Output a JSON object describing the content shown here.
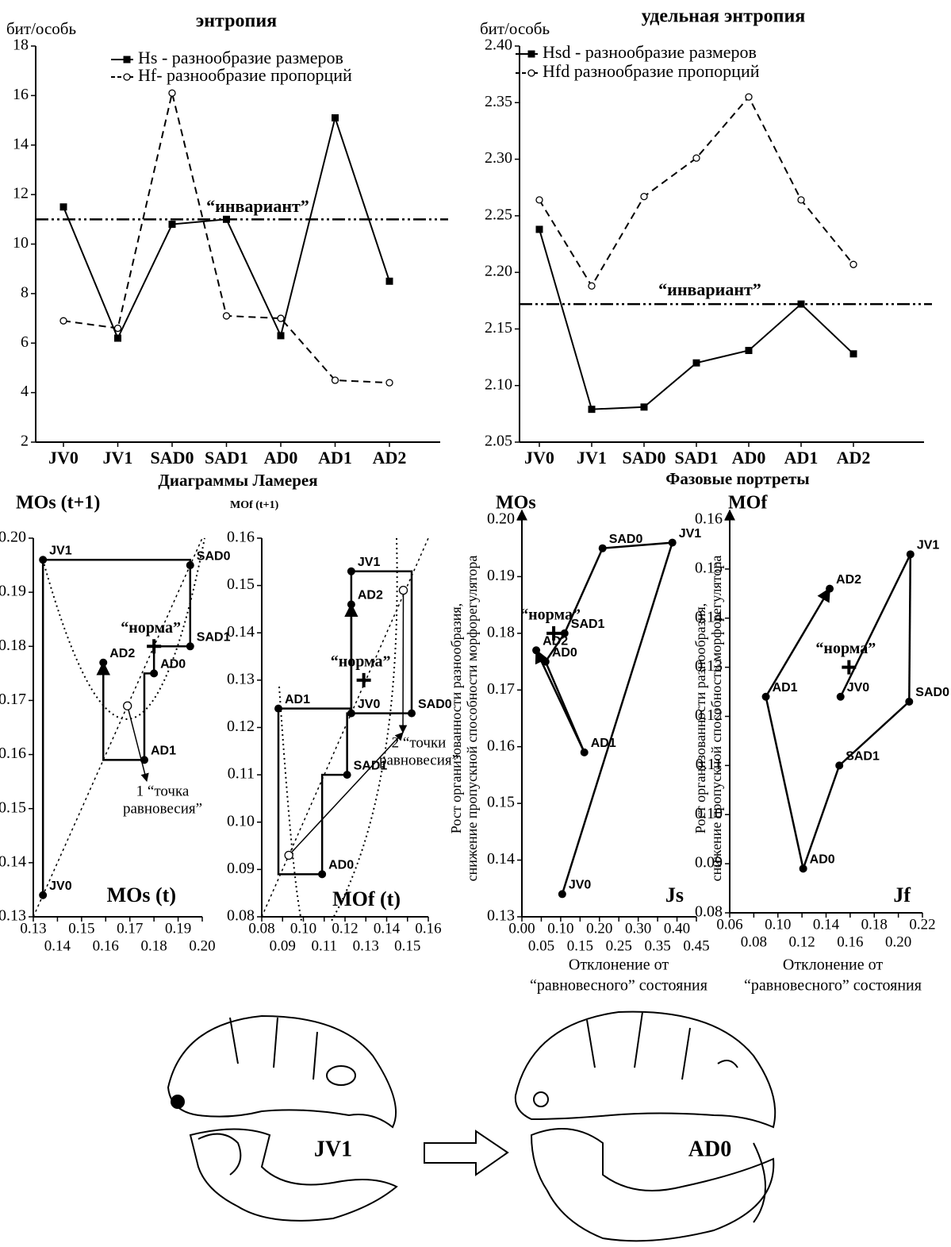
{
  "chart_data": [
    {
      "type": "line",
      "title": "энтропия",
      "ylabel": "бит/особь",
      "categories": [
        "JV0",
        "JV1",
        "SAD0",
        "SAD1",
        "AD0",
        "AD1",
        "AD2"
      ],
      "series": [
        {
          "name": "Hs - разнообразие размеров",
          "color": "#000000",
          "dash": false,
          "marker": "square",
          "values": [
            11.5,
            6.2,
            10.8,
            11.0,
            6.3,
            15.1,
            8.5
          ]
        },
        {
          "name": "Hf- разнообразие пропорций",
          "color": "#000000",
          "dash": true,
          "marker": "circle",
          "values": [
            6.9,
            6.6,
            16.1,
            7.1,
            7.0,
            4.5,
            4.4
          ]
        }
      ],
      "ylim": [
        2,
        18
      ],
      "yticks": [
        2,
        4,
        6,
        8,
        10,
        12,
        14,
        16,
        18
      ],
      "invariant": {
        "label": "“инвариант”",
        "value": 11.0
      }
    },
    {
      "type": "line",
      "title": "удельная энтропия",
      "ylabel": "бит/особь",
      "categories": [
        "JV0",
        "JV1",
        "SAD0",
        "SAD1",
        "AD0",
        "AD1",
        "AD2"
      ],
      "series": [
        {
          "name": "Hsd - разнообразие размеров",
          "color": "#000000",
          "dash": false,
          "marker": "square",
          "values": [
            2.238,
            2.079,
            2.081,
            2.12,
            2.131,
            2.172,
            2.128
          ]
        },
        {
          "name": "Hfd  разнообразие пропорций",
          "color": "#000000",
          "dash": true,
          "marker": "circle",
          "values": [
            2.264,
            2.188,
            2.267,
            2.301,
            2.355,
            2.264,
            2.207
          ]
        }
      ],
      "ylim": [
        2.05,
        2.4
      ],
      "yticks": [
        2.05,
        {
          "value": 2.1,
          "label": "2.10"
        },
        2.15,
        {
          "value": 2.2,
          "label": "2.20"
        },
        2.25,
        {
          "value": 2.3,
          "label": "2.30"
        },
        2.35,
        {
          "value": 2.4,
          "label": "2.40"
        }
      ],
      "invariant": {
        "label": "“инвариант”",
        "value": 2.172
      }
    },
    {
      "type": "lamerey",
      "group_title": "Диаграммы Ламерея",
      "ylabel": "MOs (t+1)",
      "xlabel": "MOs (t)",
      "point_labels": [
        "JV0",
        "JV1",
        "SAD0",
        "SAD1",
        "AD0",
        "AD1",
        "AD2"
      ],
      "x": [
        0.134,
        0.134,
        0.195,
        0.195,
        0.18,
        0.176,
        0.159
      ],
      "y": [
        0.134,
        0.196,
        0.195,
        0.18,
        0.175,
        0.159,
        0.177
      ],
      "color": "#000000",
      "xlim": [
        0.13,
        0.2
      ],
      "ylim": [
        0.13,
        0.2
      ],
      "xticks": [
        0.13,
        0.14,
        0.15,
        0.16,
        0.17,
        0.18,
        0.19,
        {
          "value": 0.2,
          "label": "0.20"
        }
      ],
      "yticks": [
        0.13,
        0.14,
        0.15,
        0.16,
        0.17,
        0.18,
        0.19,
        {
          "value": 0.2,
          "label": "0.20"
        }
      ],
      "norma": {
        "label": "“норма”",
        "x": 0.18,
        "y": 0.18
      },
      "equilibrium": {
        "label_lines": [
          "1 “точка",
          "равновесия”"
        ],
        "x": [
          0.169
        ],
        "y": [
          0.169
        ]
      }
    },
    {
      "type": "lamerey",
      "ylabel": "MOf (t+1)",
      "xlabel": "MOf (t)",
      "point_labels": [
        "JV0",
        "JV1",
        "SAD0",
        "SAD1",
        "AD0",
        "AD1",
        "AD2"
      ],
      "x": [
        0.123,
        0.123,
        0.152,
        0.121,
        0.109,
        0.088,
        0.123
      ],
      "y": [
        0.123,
        0.153,
        0.123,
        0.11,
        0.089,
        0.124,
        0.146
      ],
      "color": "#000000",
      "xlim": [
        0.08,
        0.16
      ],
      "ylim": [
        0.08,
        0.16
      ],
      "xticks": [
        0.08,
        0.09,
        {
          "value": 0.1,
          "label": "0.10"
        },
        0.11,
        0.12,
        0.13,
        0.14,
        0.15,
        0.16
      ],
      "yticks": [
        0.08,
        0.09,
        {
          "value": 0.1,
          "label": "0.10"
        },
        0.11,
        0.12,
        0.13,
        0.14,
        0.15,
        0.16
      ],
      "norma": {
        "label": "“норма”",
        "x": 0.129,
        "y": 0.13
      },
      "equilibrium": {
        "label_lines": [
          "2 “точки",
          "равновесия”"
        ],
        "x": [
          0.093,
          0.148
        ],
        "y": [
          0.093,
          0.149
        ]
      }
    },
    {
      "type": "phase",
      "group_title": "Фазовые портреты",
      "ylabel": "MOs",
      "xlabel": "Js",
      "ylabel_lines": [
        "Рост организованности разнообразия,",
        "снижение пропускной способности морфорегулятора"
      ],
      "xlabel_lines": [
        "Отклонение от",
        "“равновесного” состояния"
      ],
      "point_labels": [
        "JV0",
        "JV1",
        "SAD0",
        "SAD1",
        "AD0",
        "AD1",
        "AD2"
      ],
      "x": [
        0.104,
        0.388,
        0.208,
        0.11,
        0.061,
        0.161,
        0.037
      ],
      "y": [
        0.134,
        0.196,
        0.195,
        0.18,
        0.175,
        0.159,
        0.177
      ],
      "color": "#000000",
      "xlim": [
        0,
        0.45
      ],
      "ylim": [
        0.13,
        0.2
      ],
      "xticks": [
        {
          "value": 0,
          "label": "0.00"
        },
        0.05,
        {
          "value": 0.1,
          "label": "0.10"
        },
        0.15,
        {
          "value": 0.2,
          "label": "0.20"
        },
        0.25,
        {
          "value": 0.3,
          "label": "0.30"
        },
        0.35,
        {
          "value": 0.4,
          "label": "0.40"
        },
        0.45
      ],
      "yticks": [
        0.13,
        0.14,
        0.15,
        0.16,
        0.17,
        0.18,
        0.19,
        {
          "value": 0.2,
          "label": "0.20"
        }
      ],
      "norma": {
        "label": "“норма”",
        "x": 0.082,
        "y": 0.18
      }
    },
    {
      "type": "phase",
      "ylabel": "MOf",
      "xlabel": "Jf",
      "ylabel_lines": [
        "Рост организованности разнообразия,",
        "снижение пропускной способности морфорегулятора"
      ],
      "xlabel_lines": [
        "Отклонение от",
        "“равновесного” состояния"
      ],
      "point_labels": [
        "JV0",
        "JV1",
        "SAD0",
        "SAD1",
        "AD0",
        "AD1",
        "AD2"
      ],
      "x": [
        0.152,
        0.21,
        0.209,
        0.151,
        0.121,
        0.09,
        0.143
      ],
      "y": [
        0.124,
        0.153,
        0.123,
        0.11,
        0.089,
        0.124,
        0.146
      ],
      "color": "#000000",
      "xlim": [
        0.06,
        0.22
      ],
      "ylim": [
        0.08,
        0.16
      ],
      "xticks": [
        0.06,
        0.08,
        {
          "value": 0.1,
          "label": "0.10"
        },
        0.12,
        0.14,
        0.16,
        0.18,
        {
          "value": 0.2,
          "label": "0.20"
        },
        0.22
      ],
      "yticks": [
        0.08,
        0.09,
        {
          "value": 0.1,
          "label": "0.10"
        },
        0.11,
        0.12,
        0.13,
        0.14,
        0.15,
        0.16
      ],
      "norma": {
        "label": "“норма”",
        "x": 0.159,
        "y": 0.13
      }
    }
  ],
  "illustration": {
    "left_label": "JV1",
    "right_label": "AD0"
  }
}
